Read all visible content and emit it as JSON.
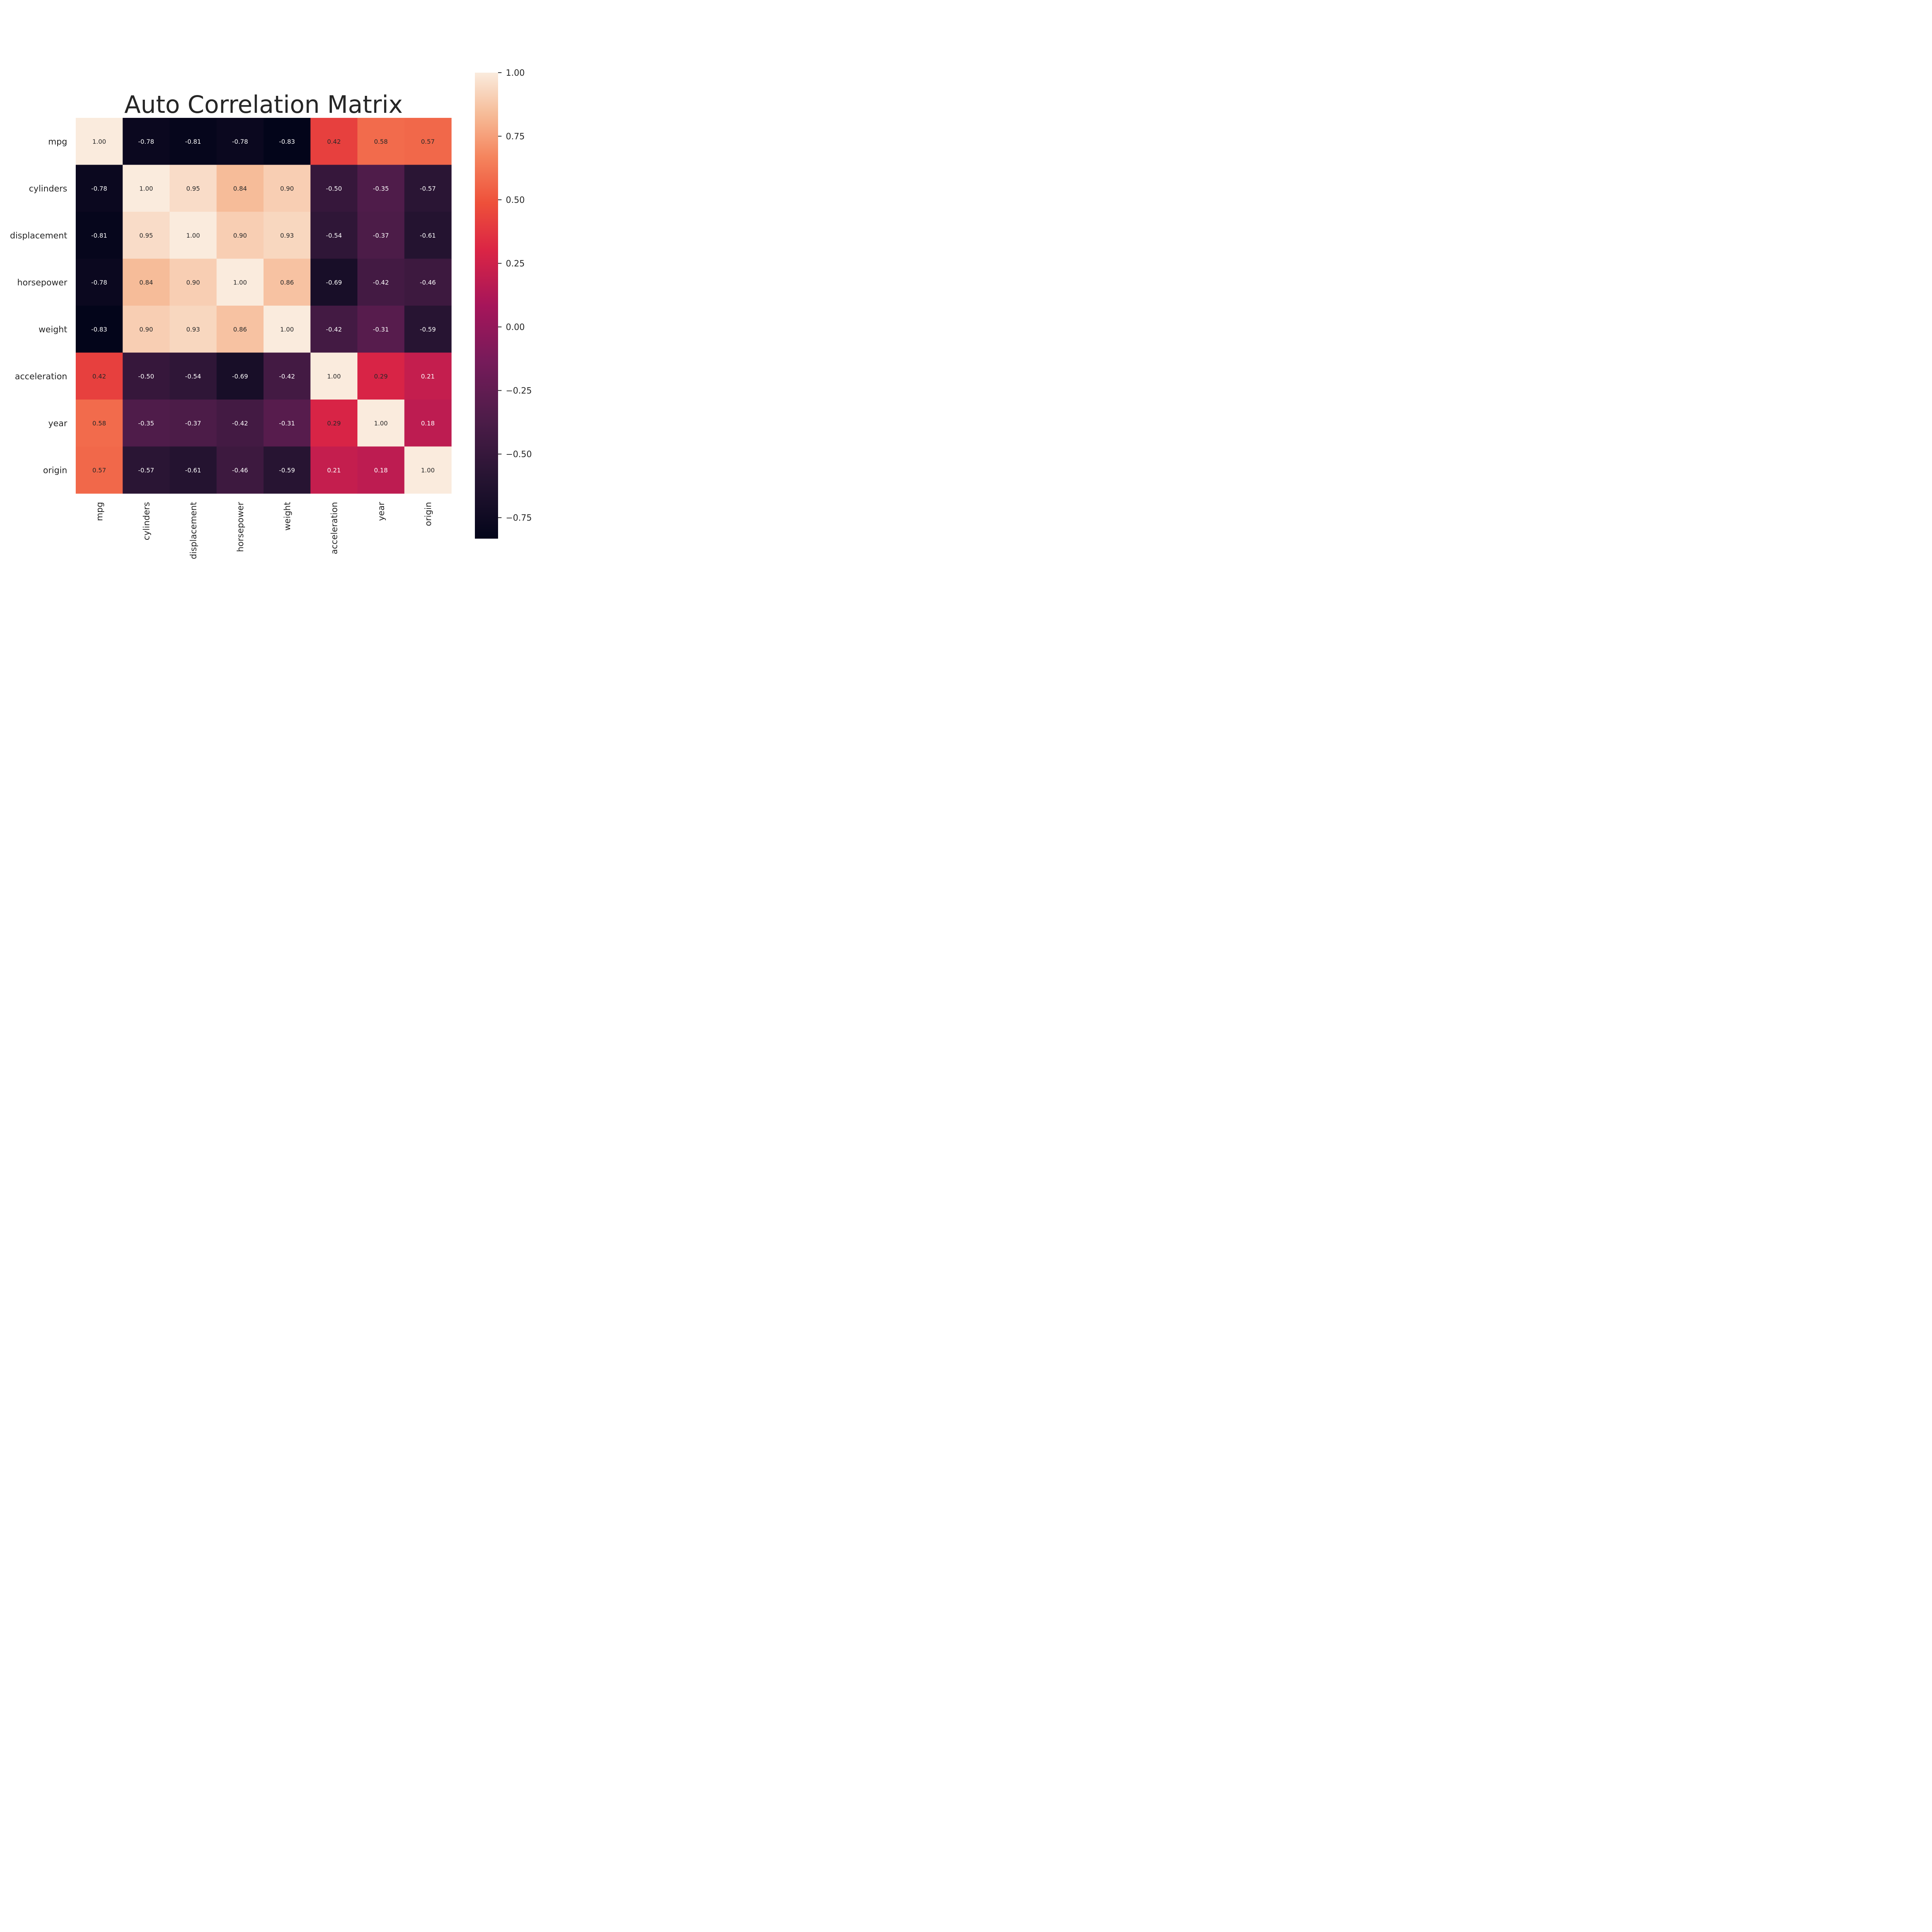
{
  "chart_data": {
    "type": "heatmap",
    "title": "Auto Correlation Matrix",
    "rows": [
      "mpg",
      "cylinders",
      "displacement",
      "horsepower",
      "weight",
      "acceleration",
      "year",
      "origin"
    ],
    "columns": [
      "mpg",
      "cylinders",
      "displacement",
      "horsepower",
      "weight",
      "acceleration",
      "year",
      "origin"
    ],
    "values": [
      [
        1.0,
        -0.78,
        -0.81,
        -0.78,
        -0.83,
        0.42,
        0.58,
        0.57
      ],
      [
        -0.78,
        1.0,
        0.95,
        0.84,
        0.9,
        -0.5,
        -0.35,
        -0.57
      ],
      [
        -0.81,
        0.95,
        1.0,
        0.9,
        0.93,
        -0.54,
        -0.37,
        -0.61
      ],
      [
        -0.78,
        0.84,
        0.9,
        1.0,
        0.86,
        -0.69,
        -0.42,
        -0.46
      ],
      [
        -0.83,
        0.9,
        0.93,
        0.86,
        1.0,
        -0.42,
        -0.31,
        -0.59
      ],
      [
        0.42,
        -0.5,
        -0.54,
        -0.69,
        -0.42,
        1.0,
        0.29,
        0.21
      ],
      [
        0.58,
        -0.35,
        -0.37,
        -0.42,
        -0.31,
        0.29,
        1.0,
        0.18
      ],
      [
        0.57,
        -0.57,
        -0.61,
        -0.46,
        -0.59,
        0.21,
        0.18,
        1.0
      ]
    ],
    "annotation_format": "0.00",
    "colormap": "rocket",
    "colorbar": {
      "range": [
        -0.8326,
        1.0
      ],
      "ticks": [
        1.0,
        0.75,
        0.5,
        0.25,
        0.0,
        -0.25,
        -0.5,
        -0.75
      ],
      "tick_labels": [
        "1.00",
        "0.75",
        "0.50",
        "0.25",
        "0.00",
        "−0.25",
        "−0.50",
        "−0.75"
      ],
      "placement": "right"
    },
    "x_tick_rotation": "vertical",
    "grid": false,
    "legend": "none"
  }
}
